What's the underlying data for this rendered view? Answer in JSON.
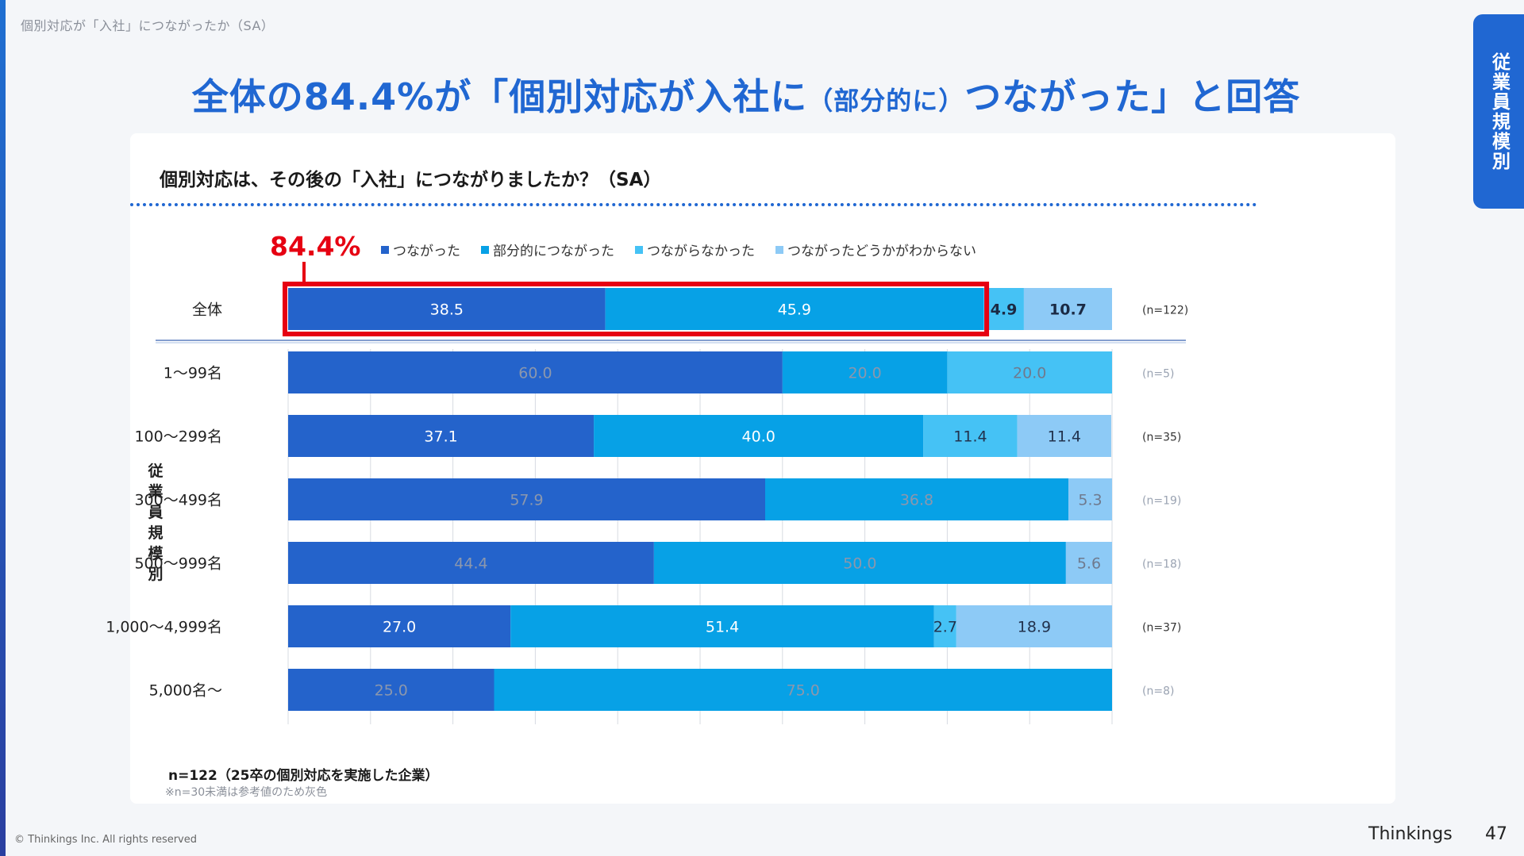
{
  "breadcrumb": "個別対応が「入社」につながったか（SA）",
  "headline": {
    "main": "全体の84.4%が「個別対応が入社に",
    "paren": "（部分的に）",
    "tail": "つながった」と回答"
  },
  "side_tab": "従業員規模別",
  "question": "個別対応は、その後の「入社」につながりましたか？（SA）",
  "callout": "84.4%",
  "footnote": {
    "sample": "n=122（25卒の個別対応を実施した企業）",
    "note": "※n=30未満は参考値のため灰色"
  },
  "footer": {
    "copyright": "© Thinkings Inc. All rights reserved",
    "brand": "Thinkings",
    "page": "47"
  },
  "chart_data": {
    "type": "bar",
    "orientation": "horizontal",
    "stacked": true,
    "percent_scale": true,
    "xlim": [
      0,
      100
    ],
    "group_label": "従業員規模別",
    "categories": [
      "全体",
      "1～99名",
      "100～299名",
      "300～499名",
      "500～999名",
      "1,000～4,999名",
      "5,000名～"
    ],
    "n_labels": [
      "(n=122)",
      "(n=5)",
      "(n=35)",
      "(n=19)",
      "(n=18)",
      "(n=37)",
      "(n=8)"
    ],
    "reference_rows": [
      false,
      true,
      false,
      true,
      true,
      false,
      true
    ],
    "series": [
      {
        "name": "つながった",
        "color": "#2463cb",
        "values": [
          38.5,
          60.0,
          37.1,
          57.9,
          44.4,
          27.0,
          25.0
        ]
      },
      {
        "name": "部分的につながった",
        "color": "#07a1e6",
        "values": [
          45.9,
          20.0,
          40.0,
          36.8,
          50.0,
          51.4,
          75.0
        ]
      },
      {
        "name": "つながらなかった",
        "color": "#45c2f5",
        "values": [
          4.9,
          20.0,
          11.4,
          0,
          0,
          2.7,
          0
        ]
      },
      {
        "name": "つながったどうかがわからない",
        "color": "#8dcaf6",
        "values": [
          10.7,
          0,
          11.4,
          5.3,
          5.6,
          18.9,
          0
        ]
      }
    ],
    "highlight": {
      "row": "全体",
      "series": [
        "つながった",
        "部分的につながった"
      ],
      "color": "#e60012"
    },
    "grid": true
  }
}
